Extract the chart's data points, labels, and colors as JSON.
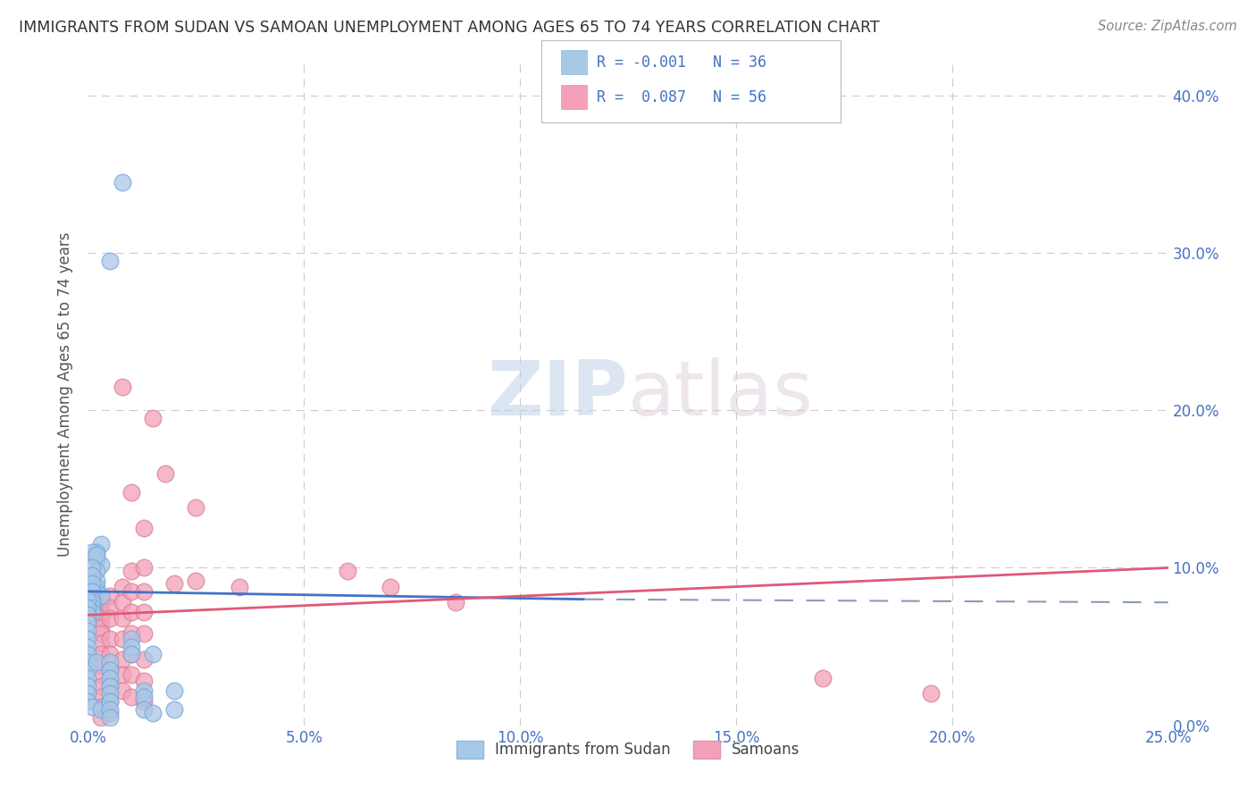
{
  "title": "IMMIGRANTS FROM SUDAN VS SAMOAN UNEMPLOYMENT AMONG AGES 65 TO 74 YEARS CORRELATION CHART",
  "source": "Source: ZipAtlas.com",
  "ylabel": "Unemployment Among Ages 65 to 74 years",
  "xlim": [
    0.0,
    0.25
  ],
  "ylim": [
    0.0,
    0.42
  ],
  "legend1_label": "Immigrants from Sudan",
  "legend2_label": "Samoans",
  "blue_color": "#a8c8e8",
  "pink_color": "#f4a0b8",
  "blue_line_color": "#4472c4",
  "pink_line_color": "#e05878",
  "dashed_line_color": "#8899bb",
  "watermark_color": "#c8d8ee",
  "axis_label_color": "#4472c4",
  "title_color": "#333333",
  "source_color": "#888888",
  "grid_color": "#cccccc",
  "sudan_points": [
    [
      0.008,
      0.345
    ],
    [
      0.005,
      0.295
    ],
    [
      0.003,
      0.115
    ],
    [
      0.002,
      0.11
    ],
    [
      0.002,
      0.105
    ],
    [
      0.003,
      0.102
    ],
    [
      0.002,
      0.098
    ],
    [
      0.002,
      0.092
    ],
    [
      0.002,
      0.088
    ],
    [
      0.002,
      0.085
    ],
    [
      0.003,
      0.082
    ],
    [
      0.001,
      0.11
    ],
    [
      0.002,
      0.108
    ],
    [
      0.001,
      0.1
    ],
    [
      0.001,
      0.095
    ],
    [
      0.001,
      0.09
    ],
    [
      0.001,
      0.085
    ],
    [
      0.001,
      0.08
    ],
    [
      0.001,
      0.078
    ],
    [
      0.001,
      0.075
    ],
    [
      0.001,
      0.072
    ],
    [
      0.0,
      0.08
    ],
    [
      0.0,
      0.075
    ],
    [
      0.0,
      0.07
    ],
    [
      0.0,
      0.065
    ],
    [
      0.0,
      0.06
    ],
    [
      0.0,
      0.055
    ],
    [
      0.0,
      0.05
    ],
    [
      0.0,
      0.045
    ],
    [
      0.0,
      0.04
    ],
    [
      0.0,
      0.035
    ],
    [
      0.0,
      0.03
    ],
    [
      0.0,
      0.025
    ],
    [
      0.0,
      0.02
    ],
    [
      0.0,
      0.015
    ],
    [
      0.002,
      0.04
    ],
    [
      0.001,
      0.012
    ],
    [
      0.003,
      0.01
    ],
    [
      0.01,
      0.055
    ],
    [
      0.01,
      0.05
    ],
    [
      0.01,
      0.045
    ],
    [
      0.005,
      0.04
    ],
    [
      0.005,
      0.035
    ],
    [
      0.005,
      0.03
    ],
    [
      0.005,
      0.025
    ],
    [
      0.005,
      0.02
    ],
    [
      0.005,
      0.015
    ],
    [
      0.005,
      0.01
    ],
    [
      0.005,
      0.005
    ],
    [
      0.013,
      0.022
    ],
    [
      0.013,
      0.018
    ],
    [
      0.013,
      0.01
    ],
    [
      0.015,
      0.045
    ],
    [
      0.015,
      0.008
    ],
    [
      0.02,
      0.022
    ],
    [
      0.02,
      0.01
    ]
  ],
  "samoan_points": [
    [
      0.003,
      0.078
    ],
    [
      0.003,
      0.072
    ],
    [
      0.003,
      0.068
    ],
    [
      0.003,
      0.062
    ],
    [
      0.003,
      0.058
    ],
    [
      0.003,
      0.052
    ],
    [
      0.003,
      0.045
    ],
    [
      0.003,
      0.038
    ],
    [
      0.003,
      0.032
    ],
    [
      0.003,
      0.025
    ],
    [
      0.003,
      0.018
    ],
    [
      0.003,
      0.012
    ],
    [
      0.003,
      0.005
    ],
    [
      0.005,
      0.082
    ],
    [
      0.005,
      0.075
    ],
    [
      0.005,
      0.068
    ],
    [
      0.005,
      0.055
    ],
    [
      0.005,
      0.045
    ],
    [
      0.005,
      0.035
    ],
    [
      0.005,
      0.025
    ],
    [
      0.005,
      0.015
    ],
    [
      0.005,
      0.008
    ],
    [
      0.008,
      0.215
    ],
    [
      0.008,
      0.088
    ],
    [
      0.008,
      0.078
    ],
    [
      0.008,
      0.068
    ],
    [
      0.008,
      0.055
    ],
    [
      0.008,
      0.042
    ],
    [
      0.008,
      0.032
    ],
    [
      0.008,
      0.022
    ],
    [
      0.01,
      0.148
    ],
    [
      0.01,
      0.098
    ],
    [
      0.01,
      0.085
    ],
    [
      0.01,
      0.072
    ],
    [
      0.01,
      0.058
    ],
    [
      0.01,
      0.045
    ],
    [
      0.01,
      0.032
    ],
    [
      0.01,
      0.018
    ],
    [
      0.013,
      0.125
    ],
    [
      0.013,
      0.1
    ],
    [
      0.013,
      0.085
    ],
    [
      0.013,
      0.072
    ],
    [
      0.013,
      0.058
    ],
    [
      0.013,
      0.042
    ],
    [
      0.013,
      0.028
    ],
    [
      0.013,
      0.015
    ],
    [
      0.015,
      0.195
    ],
    [
      0.018,
      0.16
    ],
    [
      0.02,
      0.09
    ],
    [
      0.025,
      0.138
    ],
    [
      0.025,
      0.092
    ],
    [
      0.035,
      0.088
    ],
    [
      0.06,
      0.098
    ],
    [
      0.07,
      0.088
    ],
    [
      0.085,
      0.078
    ],
    [
      0.17,
      0.03
    ],
    [
      0.195,
      0.02
    ]
  ]
}
